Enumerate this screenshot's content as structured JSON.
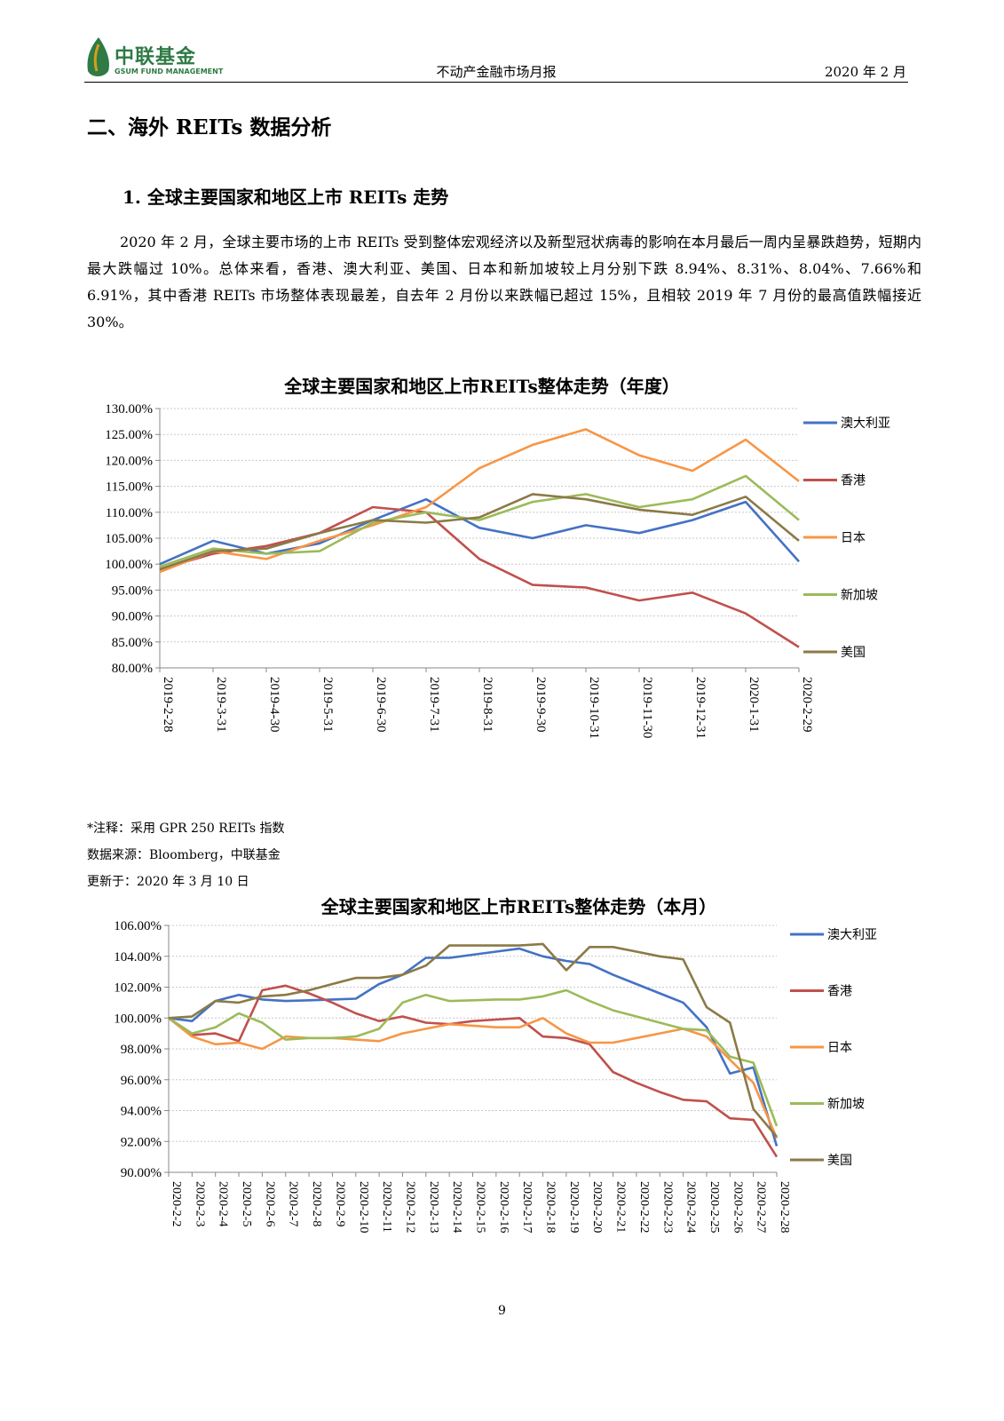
{
  "header": {
    "logo_cn": "中联基金",
    "logo_en": "GSUM FUND MANAGEMENT",
    "title": "不动产金融市场月报",
    "date": "2020 年 2 月"
  },
  "section_title": "二、海外 REITs 数据分析",
  "subsection_title": "1.  全球主要国家和地区上市 REITs 走势",
  "paragraph": "2020 年 2 月，全球主要市场的上市 REITs 受到整体宏观经济以及新型冠状病毒的影响在本月最后一周内呈暴跌趋势，短期内最大跌幅过 10%。总体来看，香港、澳大利亚、美国、日本和新加坡较上月分别下跌 8.94%、8.31%、8.04%、7.66%和 6.91%，其中香港 REITs 市场整体表现最差，自去年 2 月份以来跌幅已超过 15%，且相较 2019 年 7 月份的最高值跌幅接近 30%。",
  "notes": {
    "note": "*注释：采用 GPR 250 REITs 指数",
    "source": "数据来源：Bloomberg，中联基金",
    "updated": "更新于：2020 年 3 月 10 日"
  },
  "page_number": "9",
  "chart_data": [
    {
      "type": "line",
      "title": "全球主要国家和地区上市REITs整体走势（年度）",
      "ylim": [
        80,
        130
      ],
      "yticks": [
        "80.00%",
        "85.00%",
        "90.00%",
        "95.00%",
        "100.00%",
        "105.00%",
        "110.00%",
        "115.00%",
        "120.00%",
        "125.00%",
        "130.00%"
      ],
      "categories": [
        "2019-2-28",
        "2019-3-31",
        "2019-4-30",
        "2019-5-31",
        "2019-6-30",
        "2019-7-31",
        "2019-8-31",
        "2019-9-30",
        "2019-10-31",
        "2019-11-30",
        "2019-12-31",
        "2020-1-31",
        "2020-2-29"
      ],
      "legend_position": "right",
      "series": [
        {
          "name": "澳大利亚",
          "color": "#4472c4",
          "values": [
            100.0,
            104.5,
            102.0,
            104.0,
            108.5,
            112.5,
            107.0,
            105.0,
            107.5,
            106.0,
            108.5,
            112.0,
            100.5
          ]
        },
        {
          "name": "香港",
          "color": "#c0504d",
          "values": [
            99.0,
            102.0,
            103.5,
            106.0,
            111.0,
            110.0,
            101.0,
            96.0,
            95.5,
            93.0,
            94.5,
            90.5,
            84.0
          ]
        },
        {
          "name": "日本",
          "color": "#f79646",
          "values": [
            98.5,
            102.5,
            101.0,
            104.5,
            107.5,
            111.0,
            118.5,
            123.0,
            126.0,
            121.0,
            118.0,
            124.0,
            116.0
          ]
        },
        {
          "name": "新加坡",
          "color": "#9bbb59",
          "values": [
            99.5,
            103.0,
            102.0,
            102.5,
            108.0,
            110.0,
            108.5,
            112.0,
            113.5,
            111.0,
            112.5,
            117.0,
            108.5
          ]
        },
        {
          "name": "美国",
          "color": "#8b7a47",
          "values": [
            99.0,
            102.5,
            103.0,
            106.0,
            108.5,
            108.0,
            109.0,
            113.5,
            112.5,
            110.5,
            109.5,
            113.0,
            104.5
          ]
        }
      ]
    },
    {
      "type": "line",
      "title": "全球主要国家和地区上市REITs整体走势（本月）",
      "ylim": [
        90,
        106
      ],
      "yticks": [
        "90.00%",
        "92.00%",
        "94.00%",
        "96.00%",
        "98.00%",
        "100.00%",
        "102.00%",
        "104.00%",
        "106.00%"
      ],
      "categories": [
        "2020-2-2",
        "2020-2-3",
        "2020-2-4",
        "2020-2-5",
        "2020-2-6",
        "2020-2-7",
        "2020-2-8",
        "2020-2-9",
        "2020-2-10",
        "2020-2-11",
        "2020-2-12",
        "2020-2-13",
        "2020-2-14",
        "2020-2-15",
        "2020-2-16",
        "2020-2-17",
        "2020-2-18",
        "2020-2-19",
        "2020-2-20",
        "2020-2-21",
        "2020-2-22",
        "2020-2-23",
        "2020-2-24",
        "2020-2-25",
        "2020-2-26",
        "2020-2-27",
        "2020-2-28"
      ],
      "legend_position": "right",
      "series": [
        {
          "name": "澳大利亚",
          "color": "#4472c4",
          "values": [
            100.0,
            99.8,
            101.1,
            101.5,
            101.2,
            101.1,
            101.15,
            101.2,
            101.25,
            102.2,
            102.8,
            103.9,
            103.9,
            104.1,
            104.3,
            104.5,
            104.0,
            103.7,
            103.5,
            102.8,
            102.2,
            101.6,
            101.0,
            99.4,
            96.4,
            96.8,
            91.7
          ]
        },
        {
          "name": "香港",
          "color": "#c0504d",
          "values": [
            100.0,
            98.9,
            99.0,
            98.5,
            101.8,
            102.1,
            101.6,
            101.0,
            100.3,
            99.8,
            100.1,
            99.7,
            99.6,
            99.8,
            99.9,
            100.0,
            98.8,
            98.7,
            98.3,
            96.5,
            95.8,
            95.2,
            94.7,
            94.6,
            93.5,
            93.4,
            91.0
          ]
        },
        {
          "name": "日本",
          "color": "#f79646",
          "values": [
            100.0,
            98.8,
            98.3,
            98.4,
            98.0,
            98.8,
            98.7,
            98.7,
            98.6,
            98.5,
            99.0,
            99.3,
            99.6,
            99.5,
            99.4,
            99.4,
            100.0,
            99.0,
            98.4,
            98.4,
            98.7,
            99.0,
            99.3,
            98.8,
            97.3,
            95.8,
            92.2
          ]
        },
        {
          "name": "新加坡",
          "color": "#9bbb59",
          "values": [
            100.0,
            99.0,
            99.4,
            100.3,
            99.7,
            98.6,
            98.7,
            98.7,
            98.8,
            99.3,
            101.0,
            101.5,
            101.1,
            101.15,
            101.2,
            101.2,
            101.4,
            101.8,
            101.1,
            100.5,
            100.1,
            99.7,
            99.3,
            99.2,
            97.5,
            97.1,
            93.0
          ]
        },
        {
          "name": "美国",
          "color": "#8b7a47",
          "values": [
            100.0,
            100.1,
            101.1,
            101.0,
            101.4,
            101.5,
            101.8,
            102.2,
            102.6,
            102.6,
            102.8,
            103.4,
            104.7,
            104.7,
            104.7,
            104.7,
            104.8,
            103.1,
            104.6,
            104.6,
            104.3,
            104.0,
            103.8,
            100.7,
            99.7,
            94.1,
            92.3
          ]
        }
      ]
    }
  ]
}
